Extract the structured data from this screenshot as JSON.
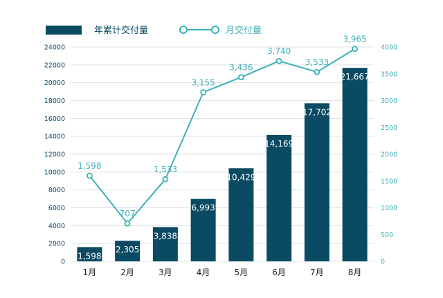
{
  "chart_data": {
    "type": "bar",
    "categories": [
      "1月",
      "2月",
      "3月",
      "4月",
      "5月",
      "6月",
      "7月",
      "8月"
    ],
    "series": [
      {
        "name": "年累计交付量",
        "kind": "bar",
        "axis": "left",
        "values": [
          1598,
          2305,
          3838,
          6993,
          10429,
          14169,
          17702,
          21667
        ],
        "labels": [
          "1,598",
          "2,305",
          "3,838",
          "6,993",
          "10,429",
          "14,169",
          "17,702",
          "21,667"
        ],
        "color": "#0b4a63"
      },
      {
        "name": "月交付量",
        "kind": "line",
        "axis": "right",
        "values": [
          1598,
          707,
          1533,
          3155,
          3436,
          3740,
          3533,
          3965
        ],
        "labels": [
          "1,598",
          "707",
          "1,533",
          "3,155",
          "3,436",
          "3,740",
          "3,533",
          "3,965"
        ],
        "color": "#3ab1b6"
      }
    ],
    "left_axis": {
      "min": 0,
      "max": 24000,
      "step": 2000,
      "ticks": [
        "0",
        "2000",
        "4000",
        "6000",
        "8000",
        "10000",
        "12000",
        "14000",
        "16000",
        "18000",
        "20000",
        "22000",
        "24000"
      ]
    },
    "right_axis": {
      "min": 0,
      "max": 4000,
      "step": 500,
      "ticks": [
        "0",
        "500",
        "1000",
        "1500",
        "2000",
        "2500",
        "3000",
        "3500",
        "4000"
      ]
    },
    "grid": true,
    "legend_position": "top-left",
    "colors": {
      "bar": "#0b4a63",
      "line": "#3ab1b6",
      "grid": "#dde3e6",
      "axis_text_left": "#0b4a63",
      "axis_text_right": "#3ab1b6",
      "category_text": "#222222"
    }
  }
}
